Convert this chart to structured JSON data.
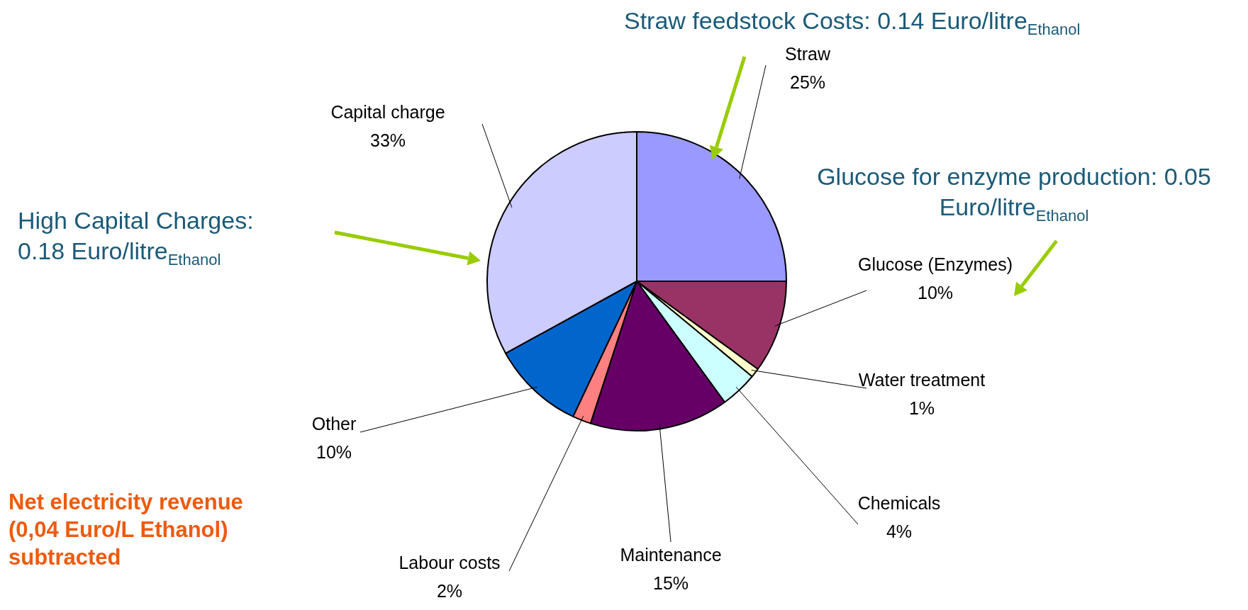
{
  "chart_data": {
    "type": "pie",
    "categories": [
      "Straw",
      "Glucose (Enzymes)",
      "Water treatment",
      "Chemicals",
      "Maintenance",
      "Labour costs",
      "Other",
      "Capital charge"
    ],
    "values": [
      25,
      10,
      1,
      4,
      15,
      2,
      10,
      33
    ],
    "colors": [
      "#9999ff",
      "#993366",
      "#ffffcc",
      "#ccffff",
      "#660066",
      "#ff8080",
      "#0066cc",
      "#ccccff"
    ],
    "value_labels": [
      "25%",
      "10%",
      "1%",
      "4%",
      "15%",
      "2%",
      "10%",
      "33%"
    ],
    "legend": false,
    "annotations": [
      "Straw    feedstock Costs: 0.14 Euro/litre$_{Ethanol}$",
      "Glucose for enzyme production: 0.05 Euro/litre$_{Ethanol}$",
      "High Capital Charges: 0.18 Euro/litre$_{Ethanol}$",
      "Net electricity revenue (0,04 Euro/L Ethanol) subtracted"
    ]
  }
}
